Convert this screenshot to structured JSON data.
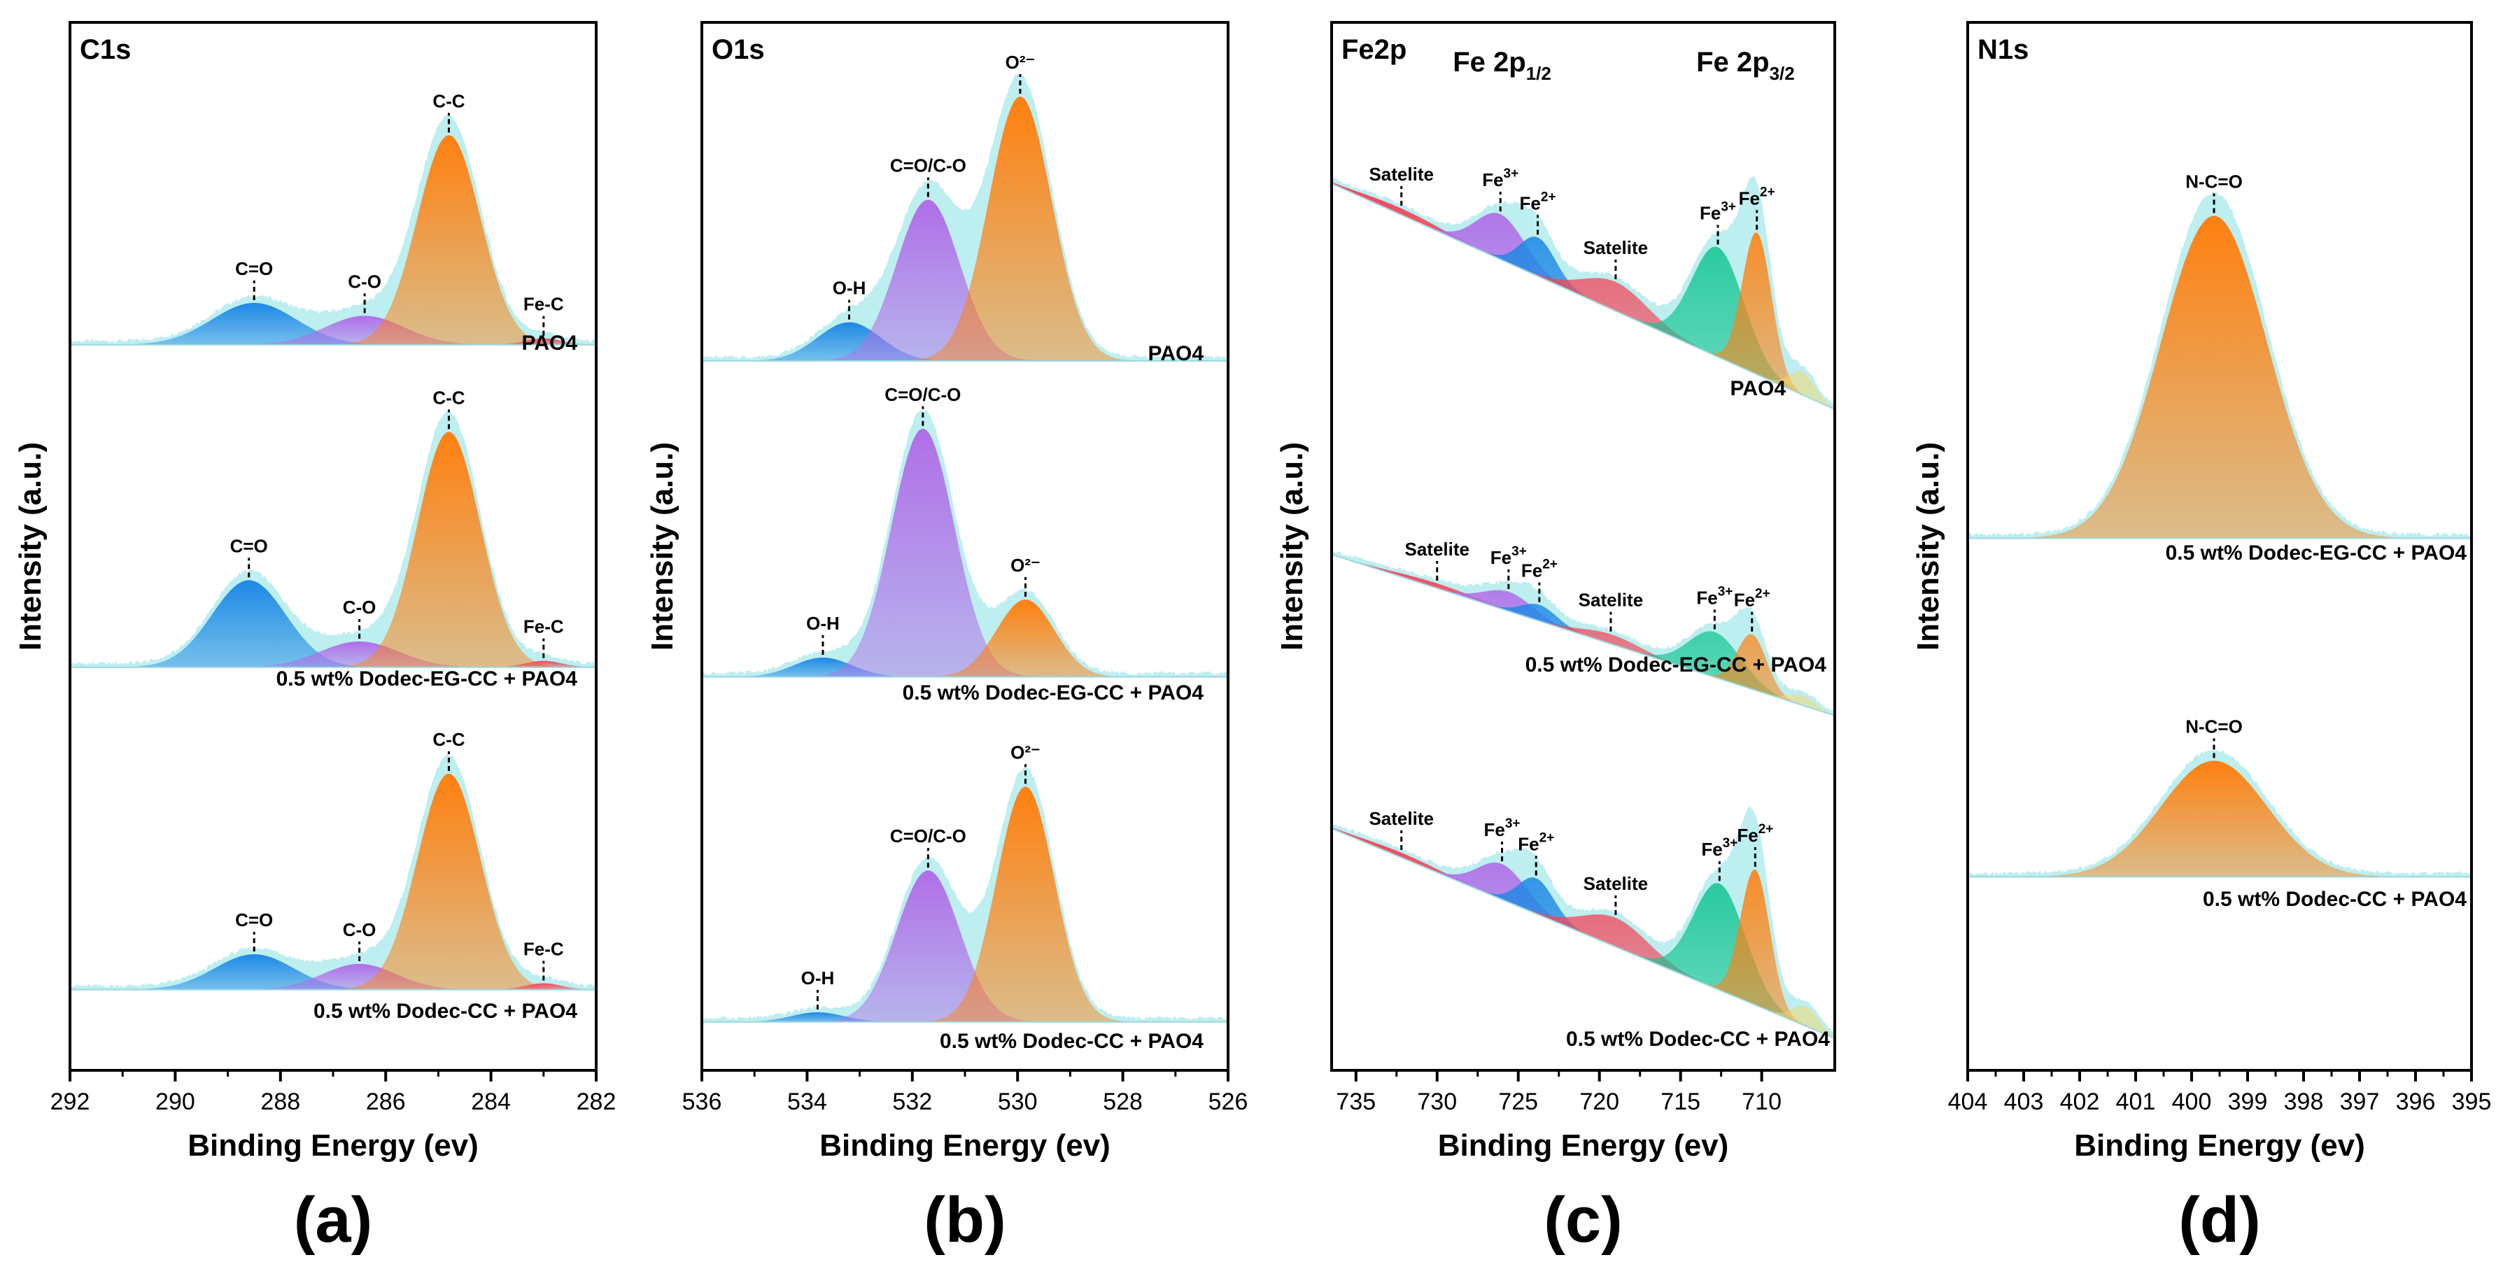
{
  "figure": {
    "y_axis_title": "Intensity (a.u.)",
    "x_axis_title": "Binding Energy (ev)"
  },
  "chart_data": [
    {
      "type": "area",
      "panel": "a",
      "letter": "(a)",
      "title": "C1s",
      "xlabel": "Binding Energy (ev)",
      "ylabel": "Intensity (a.u.)",
      "xlim": [
        292,
        282
      ],
      "xticks": [
        "292",
        "290",
        "288",
        "286",
        "284",
        "282"
      ],
      "xtick_values": [
        292,
        290,
        288,
        286,
        284,
        282
      ],
      "ylim": [
        0,
        3.25
      ],
      "series": [
        {
          "name": "PAO4",
          "offset": 2.25,
          "peaks": [
            {
              "name": "C=O",
              "center": 288.5,
              "height": 0.13,
              "sigma": 0.8,
              "color": "#1e88e5"
            },
            {
              "name": "C-O",
              "center": 286.4,
              "height": 0.09,
              "sigma": 0.75,
              "color": "#b06ee8"
            },
            {
              "name": "C-C",
              "center": 284.8,
              "height": 0.65,
              "sigma": 0.6,
              "color": "#ff8010"
            },
            {
              "name": "Fe-C",
              "center": 283.0,
              "height": 0.02,
              "sigma": 0.35,
              "color": "#f4465a"
            }
          ]
        },
        {
          "name": "0.5 wt% Dodec-EG-CC + PAO4",
          "offset": 1.25,
          "peaks": [
            {
              "name": "C=O",
              "center": 288.6,
              "height": 0.27,
              "sigma": 0.7,
              "color": "#1e88e5"
            },
            {
              "name": "C-O",
              "center": 286.5,
              "height": 0.08,
              "sigma": 0.75,
              "color": "#b06ee8"
            },
            {
              "name": "C-C",
              "center": 284.8,
              "height": 0.73,
              "sigma": 0.6,
              "color": "#ff8010"
            },
            {
              "name": "Fe-C",
              "center": 283.0,
              "height": 0.02,
              "sigma": 0.35,
              "color": "#f4465a"
            }
          ]
        },
        {
          "name": "0.5 wt% Dodec-CC + PAO4",
          "offset": 0.25,
          "peaks": [
            {
              "name": "C=O",
              "center": 288.5,
              "height": 0.11,
              "sigma": 0.75,
              "color": "#1e88e5"
            },
            {
              "name": "C-O",
              "center": 286.5,
              "height": 0.08,
              "sigma": 0.7,
              "color": "#b06ee8"
            },
            {
              "name": "C-C",
              "center": 284.8,
              "height": 0.67,
              "sigma": 0.6,
              "color": "#ff8010"
            },
            {
              "name": "Fe-C",
              "center": 283.0,
              "height": 0.02,
              "sigma": 0.35,
              "color": "#f4465a"
            }
          ]
        }
      ]
    },
    {
      "type": "area",
      "panel": "b",
      "letter": "(b)",
      "title": "O1s",
      "xlabel": "Binding Energy (ev)",
      "ylabel": "Intensity (a.u.)",
      "xlim": [
        536,
        526
      ],
      "xticks": [
        "536",
        "534",
        "532",
        "530",
        "528",
        "526"
      ],
      "xtick_values": [
        536,
        534,
        532,
        530,
        528,
        526
      ],
      "ylim": [
        0,
        3.25
      ],
      "series": [
        {
          "name": "PAO4",
          "offset": 2.2,
          "peaks": [
            {
              "name": "O-H",
              "center": 533.2,
              "height": 0.12,
              "sigma": 0.6,
              "color": "#1e88e5"
            },
            {
              "name": "C=O/C-O",
              "center": 531.7,
              "height": 0.5,
              "sigma": 0.6,
              "color": "#b06ee8"
            },
            {
              "name": "O²⁻",
              "center": 529.95,
              "height": 0.82,
              "sigma": 0.6,
              "color": "#ff8010"
            }
          ]
        },
        {
          "name": "0.5 wt% Dodec-EG-CC + PAO4",
          "offset": 1.22,
          "peaks": [
            {
              "name": "O-H",
              "center": 533.7,
              "height": 0.06,
              "sigma": 0.55,
              "color": "#1e88e5"
            },
            {
              "name": "C=O/C-O",
              "center": 531.8,
              "height": 0.77,
              "sigma": 0.6,
              "color": "#b06ee8"
            },
            {
              "name": "O²⁻",
              "center": 529.85,
              "height": 0.24,
              "sigma": 0.55,
              "color": "#ff8010"
            }
          ]
        },
        {
          "name": "0.5 wt% Dodec-CC + PAO4",
          "offset": 0.15,
          "peaks": [
            {
              "name": "O-H",
              "center": 533.8,
              "height": 0.03,
              "sigma": 0.5,
              "color": "#1e88e5"
            },
            {
              "name": "C=O/C-O",
              "center": 531.7,
              "height": 0.47,
              "sigma": 0.6,
              "color": "#b06ee8"
            },
            {
              "name": "O²⁻",
              "center": 529.85,
              "height": 0.73,
              "sigma": 0.55,
              "color": "#ff8010"
            }
          ]
        }
      ]
    },
    {
      "type": "area",
      "panel": "c",
      "letter": "(c)",
      "title": "Fe2p",
      "xlabel": "Binding Energy (ev)",
      "ylabel": "Intensity (a.u.)",
      "xlim": [
        736.5,
        705.5
      ],
      "xticks": [
        "735",
        "730",
        "725",
        "720",
        "715",
        "710"
      ],
      "xtick_values": [
        735,
        730,
        725,
        720,
        715,
        710
      ],
      "ylim": [
        0,
        3.25
      ],
      "header_labels": [
        {
          "base": "Fe 2p",
          "sub": "1/2",
          "x": 726
        },
        {
          "base": "Fe 2p",
          "sub": "3/2",
          "x": 711
        }
      ],
      "series": [
        {
          "name": "PAO4",
          "base_start": 2.75,
          "base_end": 2.05,
          "peaks": [
            {
              "name": "Satelite",
              "label_base": "Satelite",
              "label_sup": "",
              "center": 732.2,
              "height": 0.02,
              "sigma": 2.5,
              "color": "#f4465a"
            },
            {
              "name": "Fe3+",
              "label_base": "Fe",
              "label_sup": "3+",
              "center": 726.1,
              "height": 0.14,
              "sigma": 1.5,
              "color": "#b06ee8"
            },
            {
              "name": "Fe2+",
              "label_base": "Fe",
              "label_sup": "2+",
              "center": 723.8,
              "height": 0.12,
              "sigma": 1.1,
              "color": "#1e88e5"
            },
            {
              "name": "Satelite",
              "label_base": "Satelite",
              "label_sup": "",
              "center": 719.0,
              "height": 0.09,
              "sigma": 2.0,
              "color": "#f4465a"
            },
            {
              "name": "Fe3+",
              "label_base": "Fe",
              "label_sup": "3+",
              "center": 712.7,
              "height": 0.34,
              "sigma": 1.6,
              "color": "#11c490"
            },
            {
              "name": "Fe2+",
              "label_base": "Fe",
              "label_sup": "2+",
              "center": 710.3,
              "height": 0.44,
              "sigma": 0.9,
              "color": "#ff8010"
            },
            {
              "name": "tail",
              "label_base": "",
              "label_sup": "",
              "center": 707.5,
              "height": 0.07,
              "sigma": 0.8,
              "color": "#f6d66a"
            }
          ]
        },
        {
          "name": "0.5 wt% Dodec-EG-CC + PAO4",
          "base_start": 1.6,
          "base_end": 1.1,
          "peaks": [
            {
              "name": "Satelite",
              "label_base": "Satelite",
              "label_sup": "",
              "center": 730.0,
              "height": 0.015,
              "sigma": 2.5,
              "color": "#f4465a"
            },
            {
              "name": "Fe3+",
              "label_base": "Fe",
              "label_sup": "3+",
              "center": 725.6,
              "height": 0.06,
              "sigma": 1.5,
              "color": "#b06ee8"
            },
            {
              "name": "Fe2+",
              "label_base": "Fe",
              "label_sup": "2+",
              "center": 723.7,
              "height": 0.05,
              "sigma": 1.1,
              "color": "#1e88e5"
            },
            {
              "name": "Satelite",
              "label_base": "Satelite",
              "label_sup": "",
              "center": 719.3,
              "height": 0.03,
              "sigma": 1.8,
              "color": "#f4465a"
            },
            {
              "name": "Fe3+",
              "label_base": "Fe",
              "label_sup": "3+",
              "center": 712.9,
              "height": 0.14,
              "sigma": 1.6,
              "color": "#11c490"
            },
            {
              "name": "Fe2+",
              "label_base": "Fe",
              "label_sup": "2+",
              "center": 710.6,
              "height": 0.17,
              "sigma": 0.9,
              "color": "#ff8010"
            },
            {
              "name": "tail",
              "label_base": "",
              "label_sup": "",
              "center": 707.5,
              "height": 0.03,
              "sigma": 0.8,
              "color": "#f6d66a"
            }
          ]
        },
        {
          "name": "0.5 wt% Dodec-CC + PAO4",
          "base_start": 0.75,
          "base_end": 0.1,
          "peaks": [
            {
              "name": "Satelite",
              "label_base": "Satelite",
              "label_sup": "",
              "center": 732.2,
              "height": 0.015,
              "sigma": 2.5,
              "color": "#f4465a"
            },
            {
              "name": "Fe3+",
              "label_base": "Fe",
              "label_sup": "3+",
              "center": 726.0,
              "height": 0.11,
              "sigma": 1.5,
              "color": "#b06ee8"
            },
            {
              "name": "Fe2+",
              "label_base": "Fe",
              "label_sup": "2+",
              "center": 723.9,
              "height": 0.11,
              "sigma": 1.1,
              "color": "#1e88e5"
            },
            {
              "name": "Satelite",
              "label_base": "Satelite",
              "label_sup": "",
              "center": 719.0,
              "height": 0.09,
              "sigma": 2.0,
              "color": "#f4465a"
            },
            {
              "name": "Fe3+",
              "label_base": "Fe",
              "label_sup": "3+",
              "center": 712.6,
              "height": 0.33,
              "sigma": 1.6,
              "color": "#11c490"
            },
            {
              "name": "Fe2+",
              "label_base": "Fe",
              "label_sup": "2+",
              "center": 710.4,
              "height": 0.42,
              "sigma": 0.9,
              "color": "#ff8010"
            },
            {
              "name": "tail",
              "label_base": "",
              "label_sup": "",
              "center": 707.3,
              "height": 0.06,
              "sigma": 0.8,
              "color": "#f6d66a"
            }
          ]
        }
      ]
    },
    {
      "type": "area",
      "panel": "d",
      "letter": "(d)",
      "title": "N1s",
      "xlabel": "Binding Energy (ev)",
      "ylabel": "Intensity (a.u.)",
      "xlim": [
        404,
        395
      ],
      "xticks": [
        "404",
        "403",
        "402",
        "401",
        "400",
        "399",
        "398",
        "397",
        "396",
        "395"
      ],
      "xtick_values": [
        404,
        403,
        402,
        401,
        400,
        399,
        398,
        397,
        396,
        395
      ],
      "ylim": [
        0,
        3.25
      ],
      "series": [
        {
          "name": "0.5 wt% Dodec-EG-CC + PAO4",
          "offset": 1.65,
          "peaks": [
            {
              "name": "N-C=O",
              "center": 399.6,
              "height": 1.0,
              "sigma": 0.95,
              "color": "#ff8010"
            }
          ]
        },
        {
          "name": "0.5 wt% Dodec-CC + PAO4",
          "offset": 0.6,
          "peaks": [
            {
              "name": "N-C=O",
              "center": 399.6,
              "height": 0.36,
              "sigma": 0.95,
              "color": "#ff8010"
            }
          ]
        }
      ]
    }
  ]
}
